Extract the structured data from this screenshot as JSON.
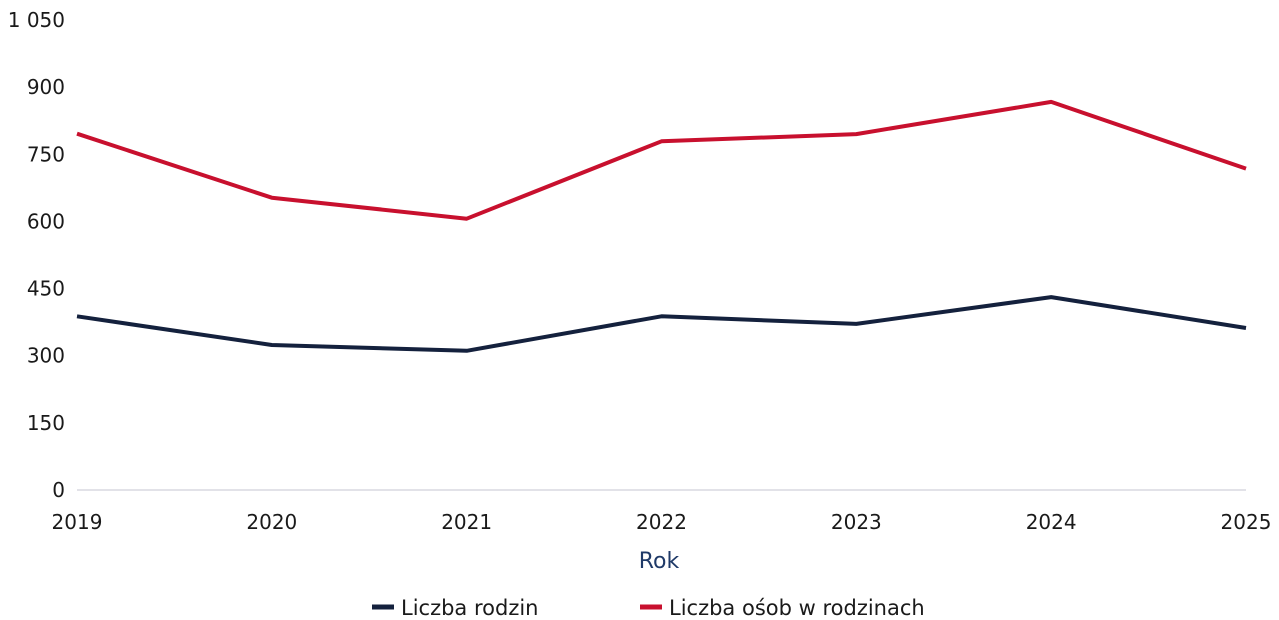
{
  "chart_data": {
    "type": "line",
    "title": "",
    "xlabel": "Rok",
    "ylabel": "",
    "x": [
      "2019",
      "2020",
      "2021",
      "2022",
      "2023",
      "2024",
      "2025"
    ],
    "y_ticks": [
      "0",
      "150",
      "300",
      "450",
      "600",
      "750",
      "900",
      "1 050"
    ],
    "ylim": [
      0,
      1050
    ],
    "grid": false,
    "legend_position": "bottom",
    "series": [
      {
        "name": "Liczba rodzin",
        "color": "#14213d",
        "values": [
          388,
          324,
          311,
          388,
          371,
          431,
          362
        ]
      },
      {
        "name": "Liczba ośob w rodzinach",
        "color": "#c8102e",
        "values": [
          796,
          653,
          606,
          779,
          795,
          867,
          718
        ]
      }
    ]
  }
}
